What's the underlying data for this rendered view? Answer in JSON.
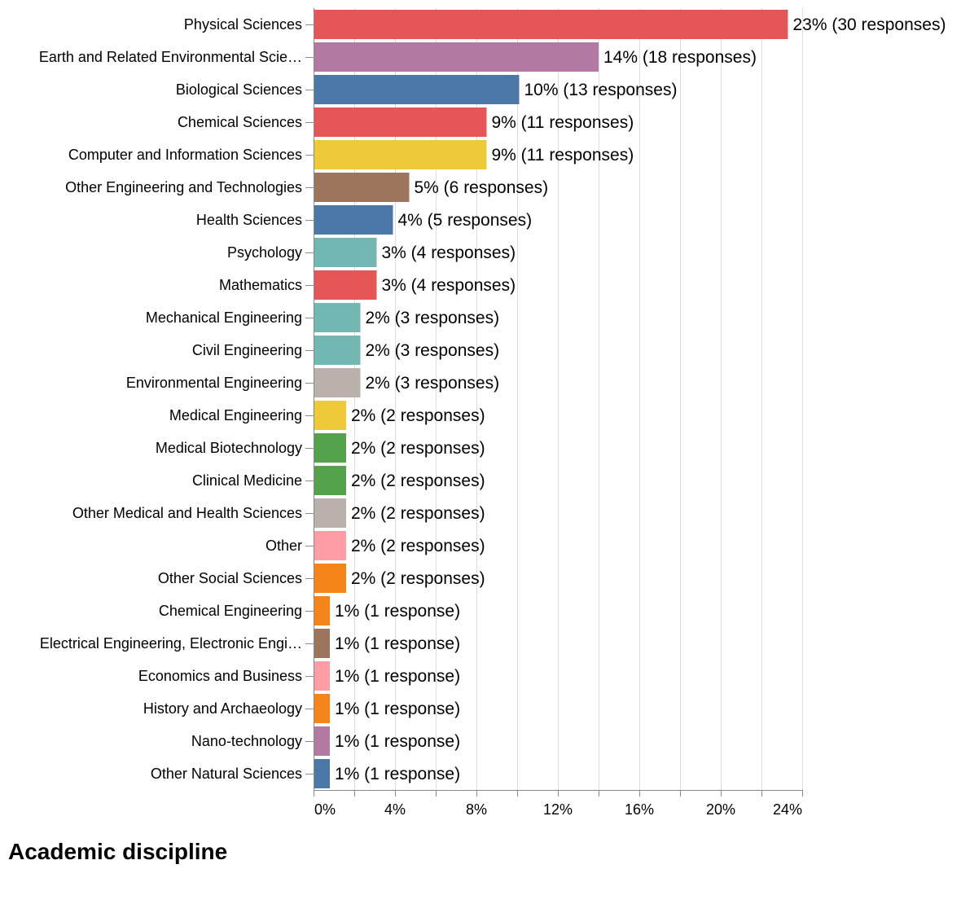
{
  "chart_data": {
    "type": "bar",
    "orientation": "horizontal",
    "title": "Academic discipline",
    "xlabel": "",
    "ylabel": "",
    "xlim": [
      0,
      24
    ],
    "x_ticks": [
      0,
      4,
      8,
      12,
      16,
      20,
      24
    ],
    "x_tick_labels": [
      "0%",
      "4%",
      "8%",
      "12%",
      "16%",
      "20%",
      "24%"
    ],
    "grid": "vertical",
    "categories": [
      "Physical Sciences",
      "Earth and Related Environmental Scie…",
      "Biological Sciences",
      "Chemical Sciences",
      "Computer and Information Sciences",
      "Other Engineering and Technologies",
      "Health Sciences",
      "Psychology",
      "Mathematics",
      "Mechanical Engineering",
      "Civil Engineering",
      "Environmental Engineering",
      "Medical Engineering",
      "Medical Biotechnology",
      "Clinical Medicine",
      "Other Medical and Health Sciences",
      "Other",
      "Other Social Sciences",
      "Chemical Engineering",
      "Electrical Engineering, Electronic Engi…",
      "Economics and Business",
      "History and Archaeology",
      "Nano-technology",
      "Other Natural Sciences"
    ],
    "values": [
      23.3,
      14.0,
      10.1,
      8.5,
      8.5,
      4.7,
      3.9,
      3.1,
      3.1,
      2.3,
      2.3,
      2.3,
      1.6,
      1.6,
      1.6,
      1.6,
      1.6,
      1.6,
      0.8,
      0.8,
      0.8,
      0.8,
      0.8,
      0.8
    ],
    "responses": [
      30,
      18,
      13,
      11,
      11,
      6,
      5,
      4,
      4,
      3,
      3,
      3,
      2,
      2,
      2,
      2,
      2,
      2,
      1,
      1,
      1,
      1,
      1,
      1
    ],
    "data_labels": [
      "23% (30 responses)",
      "14% (18 responses)",
      "10% (13 responses)",
      "9% (11 responses)",
      "9% (11 responses)",
      "5% (6 responses)",
      "4% (5 responses)",
      "3% (4 responses)",
      "3% (4 responses)",
      "2% (3 responses)",
      "2% (3 responses)",
      "2% (3 responses)",
      "2% (2 responses)",
      "2% (2 responses)",
      "2% (2 responses)",
      "2% (2 responses)",
      "2% (2 responses)",
      "2% (2 responses)",
      "1% (1 response)",
      "1% (1 response)",
      "1% (1 response)",
      "1% (1 response)",
      "1% (1 response)",
      "1% (1 response)"
    ],
    "colors": [
      "#e45756",
      "#b279a2",
      "#4c78a8",
      "#e45756",
      "#eeca3b",
      "#9d755d",
      "#4c78a8",
      "#72b7b2",
      "#e45756",
      "#72b7b2",
      "#72b7b2",
      "#bab0ac",
      "#eeca3b",
      "#54a24b",
      "#54a24b",
      "#bab0ac",
      "#ff9da6",
      "#f58518",
      "#f58518",
      "#9d755d",
      "#ff9da6",
      "#f58518",
      "#b279a2",
      "#4c78a8"
    ]
  }
}
